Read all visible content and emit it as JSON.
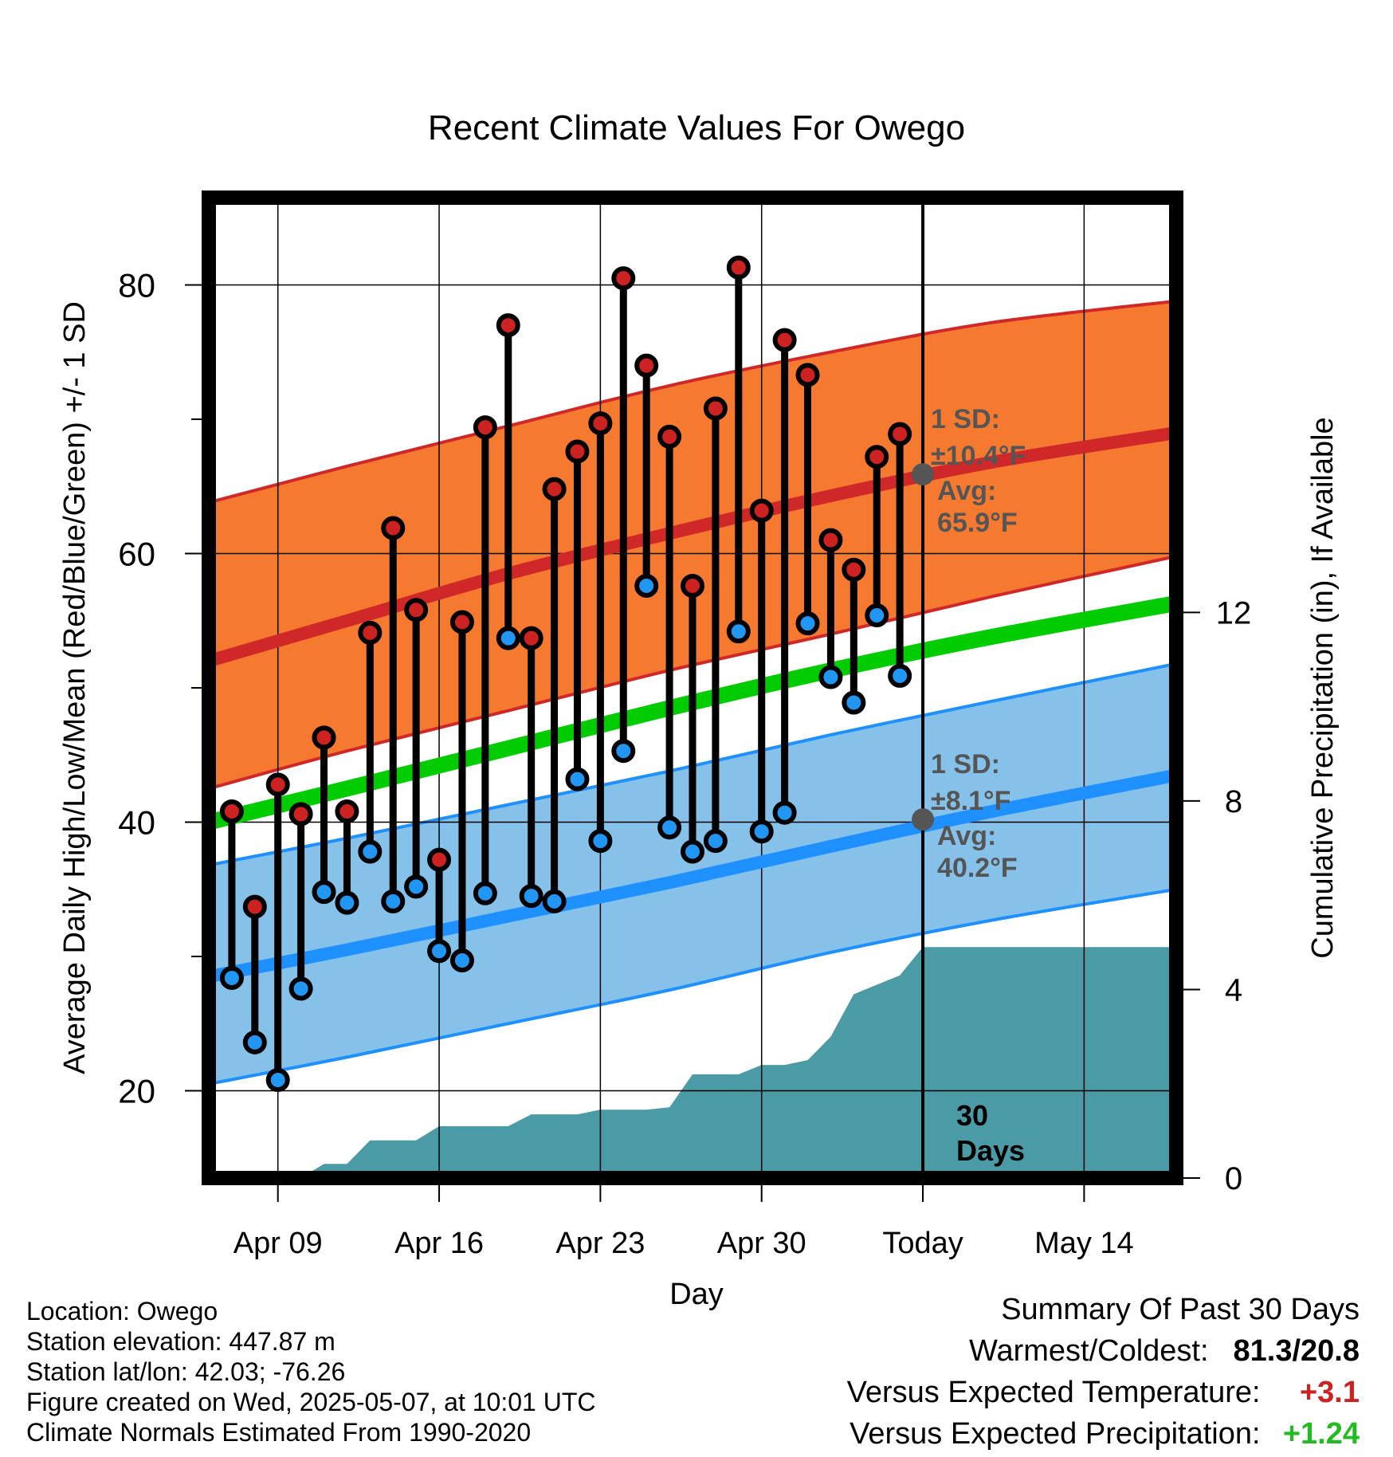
{
  "chart_data": {
    "type": "line",
    "title": "Recent Climate Values For Owego",
    "xlabel": "Day",
    "ylabel": "Average Daily High/Low/Mean (Red/Blue/Green) +/- 1 SD",
    "y2label": "Cumulative Precipitation (in), If Available",
    "x_range": [
      "Apr 06",
      "May 18"
    ],
    "ylim": [
      13.5,
      86.5
    ],
    "y2lim": [
      0,
      20.8
    ],
    "x_ticks": [
      {
        "date": "Apr 09",
        "label": "Apr 09"
      },
      {
        "date": "Apr 16",
        "label": "Apr 16"
      },
      {
        "date": "Apr 23",
        "label": "Apr 23"
      },
      {
        "date": "Apr 30",
        "label": "Apr 30"
      },
      {
        "date": "May 07",
        "label": "Today"
      },
      {
        "date": "May 14",
        "label": "May 14"
      }
    ],
    "y_ticks": [
      20,
      40,
      60,
      80
    ],
    "y_minor_ticks": [
      30,
      50,
      70
    ],
    "y2_ticks": [
      0,
      4,
      8,
      12
    ],
    "grid": true,
    "today_marker": {
      "date": "May 07",
      "label_line1": "30",
      "label_line2": "Days"
    },
    "normals": {
      "high_mean": [
        {
          "date": "Apr 06",
          "value": 52.0
        },
        {
          "date": "Apr 12",
          "value": 55.0
        },
        {
          "date": "Apr 19",
          "value": 58.5
        },
        {
          "date": "Apr 26",
          "value": 61.5
        },
        {
          "date": "May 03",
          "value": 64.3
        },
        {
          "date": "May 10",
          "value": 66.8
        },
        {
          "date": "May 18",
          "value": 69.0
        }
      ],
      "high_upper": [
        {
          "date": "Apr 06",
          "value": 63.8
        },
        {
          "date": "Apr 12",
          "value": 66.5
        },
        {
          "date": "Apr 19",
          "value": 69.5
        },
        {
          "date": "Apr 26",
          "value": 72.5
        },
        {
          "date": "May 03",
          "value": 75.0
        },
        {
          "date": "May 10",
          "value": 77.2
        },
        {
          "date": "May 18",
          "value": 78.8
        }
      ],
      "high_lower": [
        {
          "date": "Apr 06",
          "value": 42.5
        },
        {
          "date": "Apr 12",
          "value": 45.3
        },
        {
          "date": "Apr 19",
          "value": 48.3
        },
        {
          "date": "Apr 26",
          "value": 51.3
        },
        {
          "date": "May 03",
          "value": 54.0
        },
        {
          "date": "May 10",
          "value": 56.8
        },
        {
          "date": "May 18",
          "value": 59.8
        }
      ],
      "mean": [
        {
          "date": "Apr 06",
          "value": 40.0
        },
        {
          "date": "Apr 12",
          "value": 42.5
        },
        {
          "date": "Apr 19",
          "value": 45.5
        },
        {
          "date": "Apr 26",
          "value": 48.5
        },
        {
          "date": "May 03",
          "value": 51.3
        },
        {
          "date": "May 10",
          "value": 53.8
        },
        {
          "date": "May 18",
          "value": 56.3
        }
      ],
      "low_mean": [
        {
          "date": "Apr 06",
          "value": 28.5
        },
        {
          "date": "Apr 12",
          "value": 30.5
        },
        {
          "date": "Apr 19",
          "value": 33.0
        },
        {
          "date": "Apr 26",
          "value": 35.5
        },
        {
          "date": "May 03",
          "value": 38.2
        },
        {
          "date": "May 10",
          "value": 40.8
        },
        {
          "date": "May 18",
          "value": 43.5
        }
      ],
      "low_upper": [
        {
          "date": "Apr 06",
          "value": 36.8
        },
        {
          "date": "Apr 12",
          "value": 38.8
        },
        {
          "date": "Apr 19",
          "value": 41.3
        },
        {
          "date": "Apr 26",
          "value": 43.8
        },
        {
          "date": "May 03",
          "value": 46.5
        },
        {
          "date": "May 10",
          "value": 49.0
        },
        {
          "date": "May 18",
          "value": 51.8
        }
      ],
      "low_lower": [
        {
          "date": "Apr 06",
          "value": 20.5
        },
        {
          "date": "Apr 12",
          "value": 22.5
        },
        {
          "date": "Apr 19",
          "value": 25.0
        },
        {
          "date": "Apr 26",
          "value": 27.5
        },
        {
          "date": "May 03",
          "value": 30.3
        },
        {
          "date": "May 10",
          "value": 32.7
        },
        {
          "date": "May 18",
          "value": 35.0
        }
      ]
    },
    "annotations": {
      "high": {
        "value": 65.9,
        "sd_line1": "1 SD:",
        "sd_line2": "±10.4°F",
        "avg_line1": "Avg:",
        "avg_line2": "65.9°F"
      },
      "low": {
        "value": 40.2,
        "sd_line1": "1 SD:",
        "sd_line2": "±8.1°F",
        "avg_line1": "Avg:",
        "avg_line2": "40.2°F"
      }
    },
    "series": [
      {
        "name": "High",
        "values": [
          40.8,
          33.7,
          42.8,
          40.6,
          46.3,
          40.8,
          54.1,
          61.9,
          55.8,
          37.2,
          54.9,
          69.4,
          77.0,
          53.7,
          64.8,
          67.6,
          69.7,
          80.5,
          74.0,
          68.7,
          57.6,
          70.8,
          81.3,
          63.2,
          75.9,
          73.3,
          61.0,
          58.8,
          67.2,
          68.9
        ]
      },
      {
        "name": "Low",
        "values": [
          28.4,
          23.6,
          20.8,
          27.6,
          34.8,
          34.0,
          37.8,
          34.1,
          35.2,
          30.4,
          29.7,
          34.7,
          53.7,
          34.5,
          34.1,
          43.2,
          38.6,
          45.3,
          57.6,
          39.6,
          37.8,
          38.6,
          54.2,
          39.3,
          40.7,
          54.8,
          50.8,
          48.9,
          55.4,
          50.9
        ]
      }
    ],
    "dates": [
      "Apr 07",
      "Apr 08",
      "Apr 09",
      "Apr 10",
      "Apr 11",
      "Apr 12",
      "Apr 13",
      "Apr 14",
      "Apr 15",
      "Apr 16",
      "Apr 17",
      "Apr 18",
      "Apr 19",
      "Apr 20",
      "Apr 21",
      "Apr 22",
      "Apr 23",
      "Apr 24",
      "Apr 25",
      "Apr 26",
      "Apr 27",
      "Apr 28",
      "Apr 29",
      "Apr 30",
      "May 01",
      "May 02",
      "May 03",
      "May 04",
      "May 05",
      "May 06"
    ],
    "precipitation": [
      {
        "date": "Apr 07",
        "value": 0.0
      },
      {
        "date": "Apr 10",
        "value": 0.0
      },
      {
        "date": "Apr 11",
        "value": 0.3
      },
      {
        "date": "Apr 12",
        "value": 0.3
      },
      {
        "date": "Apr 13",
        "value": 0.8
      },
      {
        "date": "Apr 14",
        "value": 0.8
      },
      {
        "date": "Apr 15",
        "value": 0.8
      },
      {
        "date": "Apr 16",
        "value": 1.1
      },
      {
        "date": "Apr 17",
        "value": 1.1
      },
      {
        "date": "Apr 18",
        "value": 1.1
      },
      {
        "date": "Apr 19",
        "value": 1.1
      },
      {
        "date": "Apr 20",
        "value": 1.35
      },
      {
        "date": "Apr 21",
        "value": 1.35
      },
      {
        "date": "Apr 22",
        "value": 1.35
      },
      {
        "date": "Apr 23",
        "value": 1.45
      },
      {
        "date": "Apr 24",
        "value": 1.45
      },
      {
        "date": "Apr 25",
        "value": 1.45
      },
      {
        "date": "Apr 26",
        "value": 1.5
      },
      {
        "date": "Apr 27",
        "value": 2.2
      },
      {
        "date": "Apr 28",
        "value": 2.2
      },
      {
        "date": "Apr 29",
        "value": 2.2
      },
      {
        "date": "Apr 30",
        "value": 2.4
      },
      {
        "date": "May 01",
        "value": 2.4
      },
      {
        "date": "May 02",
        "value": 2.5
      },
      {
        "date": "May 03",
        "value": 3.0
      },
      {
        "date": "May 04",
        "value": 3.9
      },
      {
        "date": "May 05",
        "value": 4.1
      },
      {
        "date": "May 06",
        "value": 4.3
      },
      {
        "date": "May 07",
        "value": 4.9
      },
      {
        "date": "May 18",
        "value": 4.9
      }
    ]
  },
  "info": {
    "location": "Location: Owego",
    "elevation": "Station elevation: 447.87 m",
    "latlon": "Station lat/lon: 42.03; -76.26",
    "created": "Figure created on Wed, 2025-05-07, at 10:01 UTC",
    "normals": "Climate Normals Estimated From 1990-2020"
  },
  "summary": {
    "title": "Summary Of Past 30 Days",
    "warm_label": "Warmest/Coldest:",
    "warm_value": "81.3/20.8",
    "temp_label": "Versus Expected Temperature:",
    "temp_value": "+3.1",
    "precip_label": "Versus Expected Precipitation:",
    "precip_value": "+1.24"
  },
  "colors": {
    "high_band": "#f57a30",
    "high_line": "#d02828",
    "low_band": "#85c1e9",
    "low_line": "#1e90ff",
    "mean_line": "#00cc00",
    "precip": "#4a9ba5",
    "high_dot": "#cc2222",
    "low_dot": "#2196f3",
    "annotation": "#555555",
    "warm_value": "#000000",
    "temp_value": "#cc2222",
    "precip_value": "#22bb22"
  }
}
